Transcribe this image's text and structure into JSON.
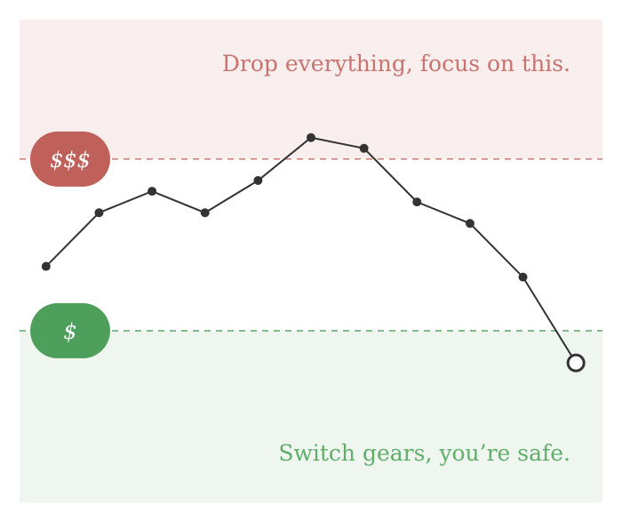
{
  "chart_data": {
    "type": "line",
    "title": "",
    "xlabel": "",
    "ylabel": "",
    "x": [
      1,
      2,
      3,
      4,
      5,
      6,
      7,
      8,
      9,
      10,
      11
    ],
    "series": [
      {
        "values": [
          4.4,
          5.4,
          5.8,
          5.4,
          6.0,
          6.8,
          6.6,
          5.6,
          5.2,
          4.2,
          2.6
        ]
      }
    ],
    "last_point_style": "hollow",
    "xlim": [
      0.5,
      11.5
    ],
    "ylim": [
      0,
      9
    ],
    "thresholds": {
      "high": {
        "value": 6.4,
        "label": "$$$",
        "color": "#c0605b"
      },
      "low": {
        "value": 3.2,
        "label": "$",
        "color": "#4f9f5c"
      }
    },
    "zones": {
      "top": {
        "text": "Drop everything, focus on this.",
        "fill": "#f8eeed",
        "text_color": "#c9736f"
      },
      "bottom": {
        "text": "Switch gears, you’re safe.",
        "fill": "#eff5ef",
        "text_color": "#5fae6a"
      }
    },
    "line_color": "#333333",
    "grid": false,
    "legend": "none"
  }
}
